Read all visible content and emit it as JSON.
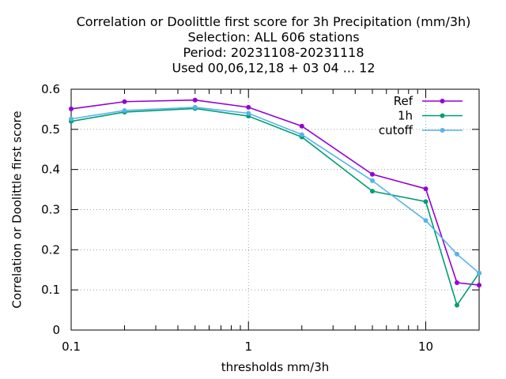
{
  "chart_data": {
    "type": "line",
    "title_lines": [
      "Correlation or Doolittle first score  for 3h Precipitation (mm/3h)",
      "Selection: ALL    606 stations",
      "Period: 20231108-20231118",
      "Used  00,06,12,18 + 03 04 ... 12"
    ],
    "xlabel": "thresholds mm/3h",
    "ylabel": "Correlation or Doolittle first score",
    "x_scale": "log",
    "xlim": [
      0.1,
      20
    ],
    "ylim": [
      0,
      0.6
    ],
    "x_ticks": [
      {
        "value": 0.1,
        "label": "0.1"
      },
      {
        "value": 1,
        "label": "1"
      },
      {
        "value": 10,
        "label": "10"
      }
    ],
    "y_ticks": [
      {
        "value": 0,
        "label": "0"
      },
      {
        "value": 0.1,
        "label": "0.1"
      },
      {
        "value": 0.2,
        "label": "0.2"
      },
      {
        "value": 0.3,
        "label": "0.3"
      },
      {
        "value": 0.4,
        "label": "0.4"
      },
      {
        "value": 0.5,
        "label": "0.5"
      },
      {
        "value": 0.6,
        "label": "0.6"
      }
    ],
    "x": [
      0.1,
      0.2,
      0.5,
      1,
      2,
      5,
      10,
      15,
      20
    ],
    "grid": true,
    "legend_position": "top-right",
    "series": [
      {
        "name": "Ref",
        "color": "#9400d3",
        "values": [
          0.551,
          0.569,
          0.573,
          0.555,
          0.508,
          0.388,
          0.352,
          0.118,
          0.112
        ]
      },
      {
        "name": "1h",
        "color": "#009e73",
        "values": [
          0.52,
          0.543,
          0.552,
          0.533,
          0.481,
          0.346,
          0.32,
          0.062,
          0.142
        ]
      },
      {
        "name": "cutoff",
        "color": "#56b4e9",
        "values": [
          0.526,
          0.547,
          0.555,
          0.54,
          0.487,
          0.372,
          0.273,
          0.189,
          0.142
        ]
      }
    ]
  }
}
